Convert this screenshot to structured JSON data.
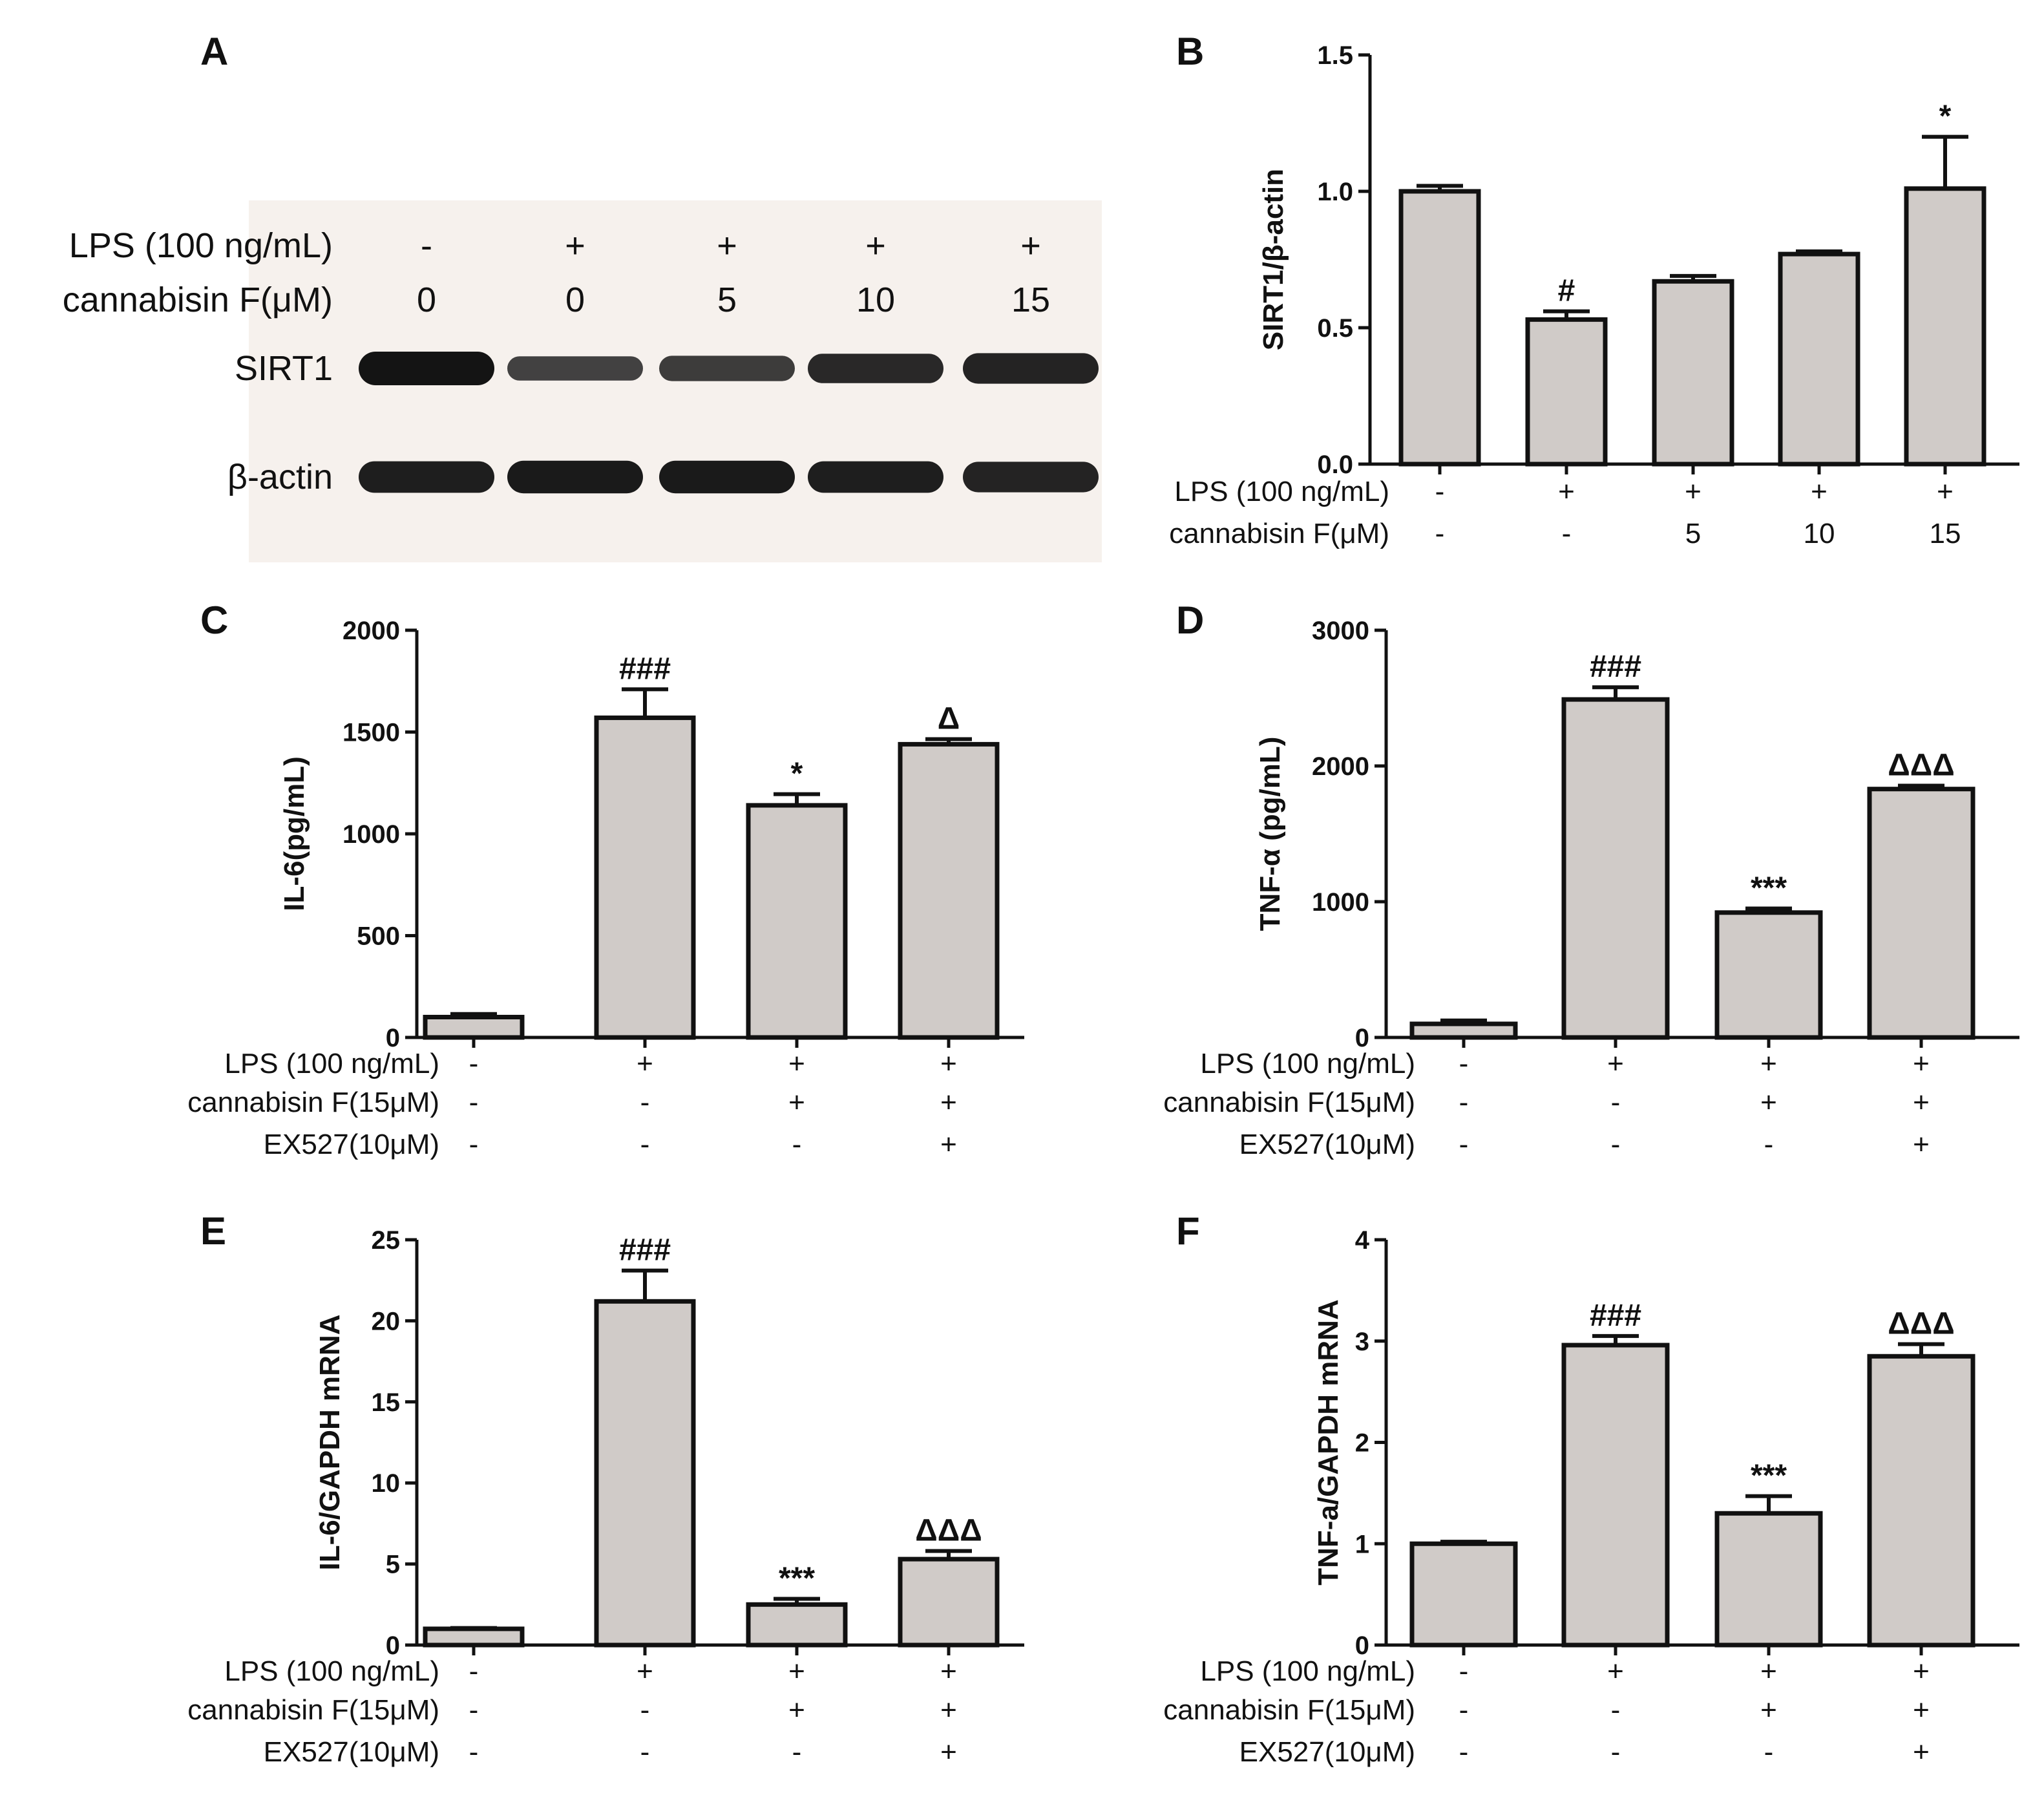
{
  "colors": {
    "bar_fill": "#d0cbc8",
    "stroke": "#111111",
    "blot_band": "#141414",
    "blot_bg": "#f6f1ed"
  },
  "panelA": {
    "letter": "A",
    "header_rows": [
      {
        "label": "LPS (100 ng/mL)",
        "values": [
          "-",
          "+",
          "+",
          "+",
          "+"
        ]
      },
      {
        "label": "cannabisin F(μM)",
        "values": [
          "0",
          "0",
          "5",
          "10",
          "15"
        ]
      }
    ],
    "bands": [
      {
        "label": "SIRT1",
        "intensity": [
          1.0,
          0.55,
          0.6,
          0.8,
          0.85
        ]
      },
      {
        "label": "β-actin",
        "intensity": [
          0.9,
          0.95,
          0.95,
          0.9,
          0.85
        ]
      }
    ]
  },
  "chart_data": [
    {
      "panel": "B",
      "type": "bar",
      "ylabel": "SIRT1/β-actin",
      "ylim": [
        0,
        1.5
      ],
      "yticks": [
        "0.0",
        "0.5",
        "1.0",
        "1.5"
      ],
      "ytick_values": [
        0,
        0.5,
        1.0,
        1.5
      ],
      "values": [
        1.0,
        0.53,
        0.67,
        0.77,
        1.01
      ],
      "errors": [
        0.02,
        0.03,
        0.02,
        0.01,
        0.19
      ],
      "annotations": [
        "",
        "#",
        "",
        "",
        "*"
      ],
      "condition_rows": [
        {
          "label": "LPS (100 ng/mL)",
          "values": [
            "-",
            "+",
            "+",
            "+",
            "+"
          ]
        },
        {
          "label": "cannabisin F(μM)",
          "values": [
            "-",
            "-",
            "5",
            "10",
            "15"
          ]
        }
      ]
    },
    {
      "panel": "C",
      "type": "bar",
      "ylabel": "IL-6(pg/mL)",
      "ylim": [
        0,
        2000
      ],
      "yticks": [
        "0",
        "500",
        "1000",
        "1500",
        "2000"
      ],
      "ytick_values": [
        0,
        500,
        1000,
        1500,
        2000
      ],
      "values": [
        100,
        1570,
        1140,
        1440
      ],
      "errors": [
        15,
        140,
        55,
        25
      ],
      "annotations": [
        "",
        "###",
        "*",
        "Δ"
      ],
      "condition_rows": [
        {
          "label": "LPS (100 ng/mL)",
          "values": [
            "-",
            "+",
            "+",
            "+"
          ]
        },
        {
          "label": "cannabisin F(15μM)",
          "values": [
            "-",
            "-",
            "+",
            "+"
          ]
        },
        {
          "label": "EX527(10μM)",
          "values": [
            "-",
            "-",
            "-",
            "+"
          ]
        }
      ]
    },
    {
      "panel": "D",
      "type": "bar",
      "ylabel": "TNF-α (pg/mL)",
      "ylim": [
        0,
        3000
      ],
      "yticks": [
        "0",
        "1000",
        "2000",
        "3000"
      ],
      "ytick_values": [
        0,
        1000,
        2000,
        3000
      ],
      "values": [
        100,
        2490,
        920,
        1830
      ],
      "errors": [
        25,
        90,
        30,
        25
      ],
      "annotations": [
        "",
        "###",
        "***",
        "ΔΔΔ"
      ],
      "condition_rows": [
        {
          "label": "LPS (100 ng/mL)",
          "values": [
            "-",
            "+",
            "+",
            "+"
          ]
        },
        {
          "label": "cannabisin F(15μM)",
          "values": [
            "-",
            "-",
            "+",
            "+"
          ]
        },
        {
          "label": "EX527(10μM)",
          "values": [
            "-",
            "-",
            "-",
            "+"
          ]
        }
      ]
    },
    {
      "panel": "E",
      "type": "bar",
      "ylabel": "IL-6/GAPDH mRNA",
      "ylim": [
        0,
        25
      ],
      "yticks": [
        "0",
        "5",
        "10",
        "15",
        "20",
        "25"
      ],
      "ytick_values": [
        0,
        5,
        10,
        15,
        20,
        25
      ],
      "values": [
        1.0,
        21.2,
        2.5,
        5.3
      ],
      "errors": [
        0.05,
        1.9,
        0.35,
        0.5
      ],
      "annotations": [
        "",
        "###",
        "***",
        "ΔΔΔ"
      ],
      "condition_rows": [
        {
          "label": "LPS (100 ng/mL)",
          "values": [
            "-",
            "+",
            "+",
            "+"
          ]
        },
        {
          "label": "cannabisin F(15μM)",
          "values": [
            "-",
            "-",
            "+",
            "+"
          ]
        },
        {
          "label": "EX527(10μM)",
          "values": [
            "-",
            "-",
            "-",
            "+"
          ]
        }
      ]
    },
    {
      "panel": "F",
      "type": "bar",
      "ylabel": "TNF-a/GAPDH mRNA",
      "ylim": [
        0,
        4
      ],
      "yticks": [
        "0",
        "1",
        "2",
        "3",
        "4"
      ],
      "ytick_values": [
        0,
        1,
        2,
        3,
        4
      ],
      "values": [
        1.0,
        2.96,
        1.3,
        2.85
      ],
      "errors": [
        0.02,
        0.09,
        0.17,
        0.12
      ],
      "annotations": [
        "",
        "###",
        "***",
        "ΔΔΔ"
      ],
      "condition_rows": [
        {
          "label": "LPS (100 ng/mL)",
          "values": [
            "-",
            "+",
            "+",
            "+"
          ]
        },
        {
          "label": "cannabisin F(15μM)",
          "values": [
            "-",
            "-",
            "+",
            "+"
          ]
        },
        {
          "label": "EX527(10μM)",
          "values": [
            "-",
            "-",
            "-",
            "+"
          ]
        }
      ]
    }
  ]
}
